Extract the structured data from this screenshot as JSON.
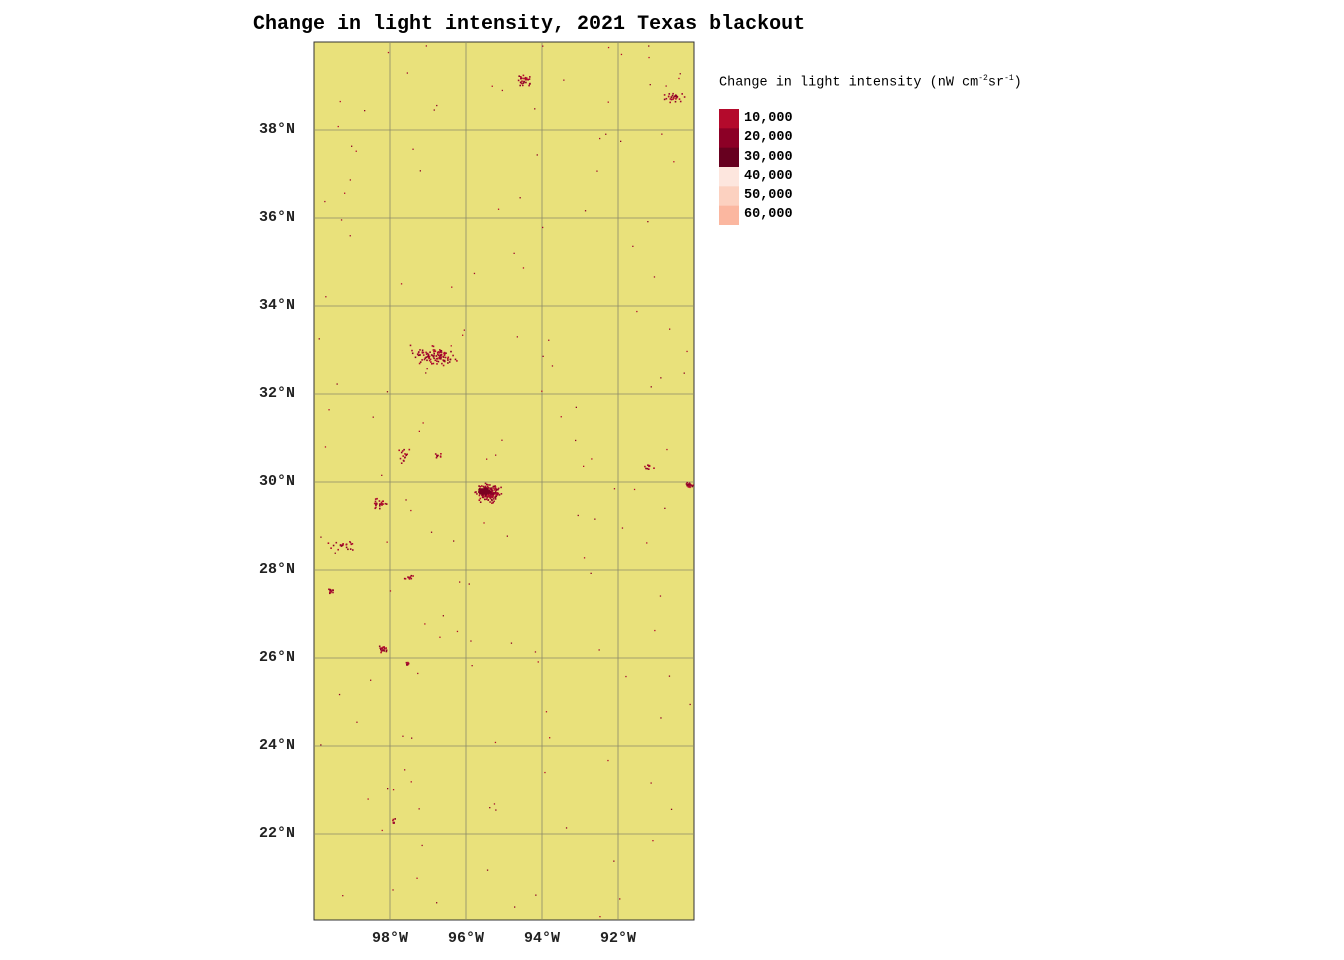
{
  "title": "Change in light intensity, 2021 Texas blackout",
  "map": {
    "background_color": "#e9e17b",
    "grid_color": "#8a8a6a",
    "lat_labels": [
      "38°N",
      "36°N",
      "34°N",
      "32°N",
      "30°N",
      "28°N",
      "26°N",
      "24°N",
      "22°N"
    ],
    "lon_labels": [
      "98°W",
      "96°W",
      "94°W",
      "92°W"
    ]
  },
  "legend": {
    "title_prefix": "Change in light intensity (nW cm",
    "title_sup1": "-2",
    "title_mid": "sr",
    "title_sup2": "-1",
    "title_suffix": ")",
    "labels": [
      "10,000",
      "20,000",
      "30,000",
      "40,000",
      "50,000",
      "60,000"
    ],
    "colors": [
      "#b40a2c",
      "#8c0026",
      "#67001f",
      "#fde6de",
      "#fcd1c0",
      "#fbb7a0"
    ]
  }
}
